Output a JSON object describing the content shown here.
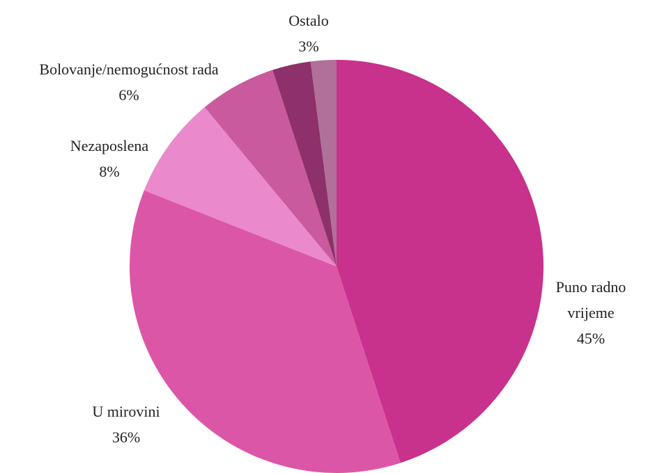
{
  "chart_data": {
    "type": "pie",
    "categories": [
      "Puno radno vrijeme",
      "U mirovini",
      "Nezaposlena",
      "Bolovanje/nemogućnost rada",
      "Ostalo",
      null
    ],
    "values": [
      45,
      36,
      8,
      6,
      3,
      2
    ],
    "value_labels": [
      "45%",
      "36%",
      "8%",
      "6%",
      "3%",
      null
    ],
    "colors": [
      "#c8318c",
      "#dc56a8",
      "#ea8acd",
      "#c95a9e",
      "#8e3069",
      "#b0709a"
    ]
  }
}
